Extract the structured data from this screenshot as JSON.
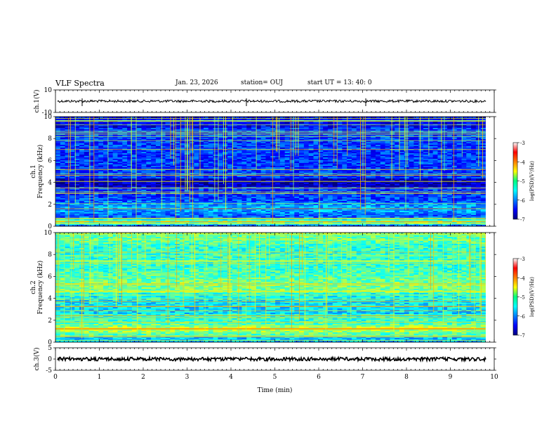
{
  "header": {
    "title": "VLF Spectra",
    "date": "Jan. 23, 2026",
    "station": "station= OUJ",
    "start": "start  UT =  13: 40: 0"
  },
  "chart_data": [
    {
      "type": "line",
      "ylabel": "ch.1(V)",
      "ylim": [
        -10,
        10
      ],
      "y_ticks": [
        "10",
        "-10"
      ],
      "baseline": 0
    },
    {
      "type": "heatmap",
      "ylabel": "ch.1\nFrequency (kHz)",
      "ylabel_lines": [
        "ch.1",
        "Frequency (kHz)"
      ],
      "ylim": [
        0,
        10
      ],
      "y_ticks": [
        "0",
        "2",
        "4",
        "6",
        "8",
        "10"
      ],
      "xlim": [
        0,
        10
      ],
      "colorbar": {
        "label": "log(PSD)(V²/Hz)",
        "min": -7,
        "max": -3,
        "ticks": [
          "-7",
          "-6",
          "-5",
          "-4",
          "-3"
        ]
      }
    },
    {
      "type": "heatmap",
      "ylabel": "ch.2\nFrequency (kHz)",
      "ylabel_lines": [
        "ch.2",
        "Frequency (kHz)"
      ],
      "ylim": [
        0,
        10
      ],
      "y_ticks": [
        "0",
        "2",
        "4",
        "6",
        "8",
        "10"
      ],
      "xlim": [
        0,
        10
      ],
      "colorbar": {
        "label": "log(PSD)(V²/Hz)",
        "min": -7,
        "max": -3,
        "ticks": [
          "-7",
          "-6",
          "-5",
          "-4",
          "-3"
        ]
      }
    },
    {
      "type": "line",
      "ylabel": "ch.3(V)",
      "ylim": [
        -5,
        5
      ],
      "y_ticks": [
        "5",
        "0",
        "-5"
      ],
      "baseline": 0
    }
  ],
  "x_axis": {
    "label": "Time (min)",
    "xlim": [
      0,
      10
    ],
    "ticks": [
      "0",
      "1",
      "2",
      "3",
      "4",
      "5",
      "6",
      "7",
      "8",
      "9",
      "10"
    ]
  },
  "colors": {
    "spectrum_bg_ch1": "#0a1a8c",
    "spectrum_bg_ch2": "#10c0e0"
  }
}
